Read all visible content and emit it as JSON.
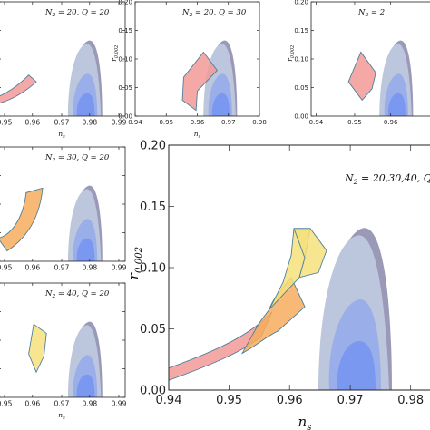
{
  "colors": {
    "planck_outer": "#9b99b8",
    "planck_mid": "#bcc6dc",
    "planck_inner": "#8fa6ee",
    "planck_core": "#6d8ff4",
    "band_red": "#f29a98",
    "band_orange": "#f6ad5d",
    "band_yellow": "#f6e17c",
    "band_edge": "#4d7f9a"
  },
  "chart_data": [
    {
      "type": "area",
      "panel": "top-left",
      "title": "N2 = 20, Q = 20",
      "xlabel": "ns",
      "ylabel": "",
      "xticks": [
        "0.95",
        "0.96",
        "0.97",
        "0.98",
        "0.99"
      ],
      "yticks": [],
      "xlim": [
        0.945,
        0.99
      ],
      "ylim": [
        0,
        0.2
      ],
      "series": [
        {
          "color": "red",
          "ns": [
            0.945,
            0.96
          ],
          "r": [
            0.06,
            0.115
          ]
        }
      ]
    },
    {
      "type": "area",
      "panel": "top-center",
      "title": "N2 = 20, Q = 30",
      "xlabel": "ns",
      "ylabel": "r0.002",
      "xticks": [
        "0.94",
        "0.95",
        "0.96",
        "0.97",
        "0.98"
      ],
      "yticks": [
        "0.00",
        "0.05",
        "0.10",
        "0.15",
        "0.20"
      ],
      "xlim": [
        0.94,
        0.98
      ],
      "ylim": [
        0,
        0.2
      ],
      "series": [
        {
          "color": "red",
          "ns": [
            0.955,
            0.964
          ],
          "r": [
            0.045,
            0.115
          ]
        }
      ]
    },
    {
      "type": "area",
      "panel": "top-right",
      "title": "N2 = 2",
      "xlabel": "",
      "ylabel": "r0.002",
      "xticks": [
        "0.94",
        "0.95",
        "0.96"
      ],
      "yticks": [
        "0.00",
        "0.05",
        "0.10",
        "0.15",
        "0.20"
      ],
      "xlim": [
        0.94,
        0.98
      ],
      "ylim": [
        0,
        0.2
      ],
      "series": [
        {
          "color": "red",
          "ns": [
            0.951,
            0.961
          ],
          "r": [
            0.055,
            0.115
          ]
        }
      ]
    },
    {
      "type": "area",
      "panel": "middle-left",
      "title": "N2 = 30, Q = 20",
      "xlabel": "",
      "ylabel": "",
      "xticks": [
        "0.95",
        "0.96",
        "0.97",
        "0.98",
        "0.99"
      ],
      "yticks": [],
      "xlim": [
        0.945,
        0.99
      ],
      "ylim": [
        0,
        0.2
      ],
      "series": [
        {
          "color": "orange",
          "ns": [
            0.945,
            0.962
          ],
          "r": [
            0.03,
            0.11
          ]
        }
      ]
    },
    {
      "type": "area",
      "panel": "bottom-left",
      "title": "N2 = 40, Q = 20",
      "xlabel": "ns",
      "ylabel": "",
      "xticks": [
        "0.95",
        "0.96",
        "0.97",
        "0.98",
        "0.99"
      ],
      "yticks": [],
      "xlim": [
        0.945,
        0.99
      ],
      "ylim": [
        0,
        0.2
      ],
      "series": [
        {
          "color": "yellow",
          "ns": [
            0.953,
            0.962
          ],
          "r": [
            0.04,
            0.095
          ]
        }
      ]
    },
    {
      "type": "area",
      "panel": "main",
      "title": "N2 = 20,30,40, Q =",
      "xlabel": "ns",
      "ylabel": "r0.002",
      "xticks": [
        "0.94",
        "0.95",
        "0.96",
        "0.97",
        "0.98"
      ],
      "yticks": [
        "0.00",
        "0.05",
        "0.10",
        "0.15",
        "0.20"
      ],
      "xlim": [
        0.94,
        0.985
      ],
      "ylim": [
        0,
        0.2
      ],
      "grid": false,
      "bands": [
        {
          "color": "red",
          "ns": [
            0.94,
            0.955
          ],
          "r": [
            0.01,
            0.06
          ]
        },
        {
          "color": "orange",
          "ns": [
            0.952,
            0.961
          ],
          "r": [
            0.028,
            0.085
          ]
        },
        {
          "color": "yellow",
          "ns": [
            0.957,
            0.966
          ],
          "r": [
            0.045,
            0.13
          ]
        }
      ],
      "contours": {
        "planck_2sigma_ns": [
          0.951,
          0.976
        ],
        "planck_1sigma_ns": [
          0.958,
          0.971
        ],
        "r_upper_95": 0.135
      }
    }
  ]
}
